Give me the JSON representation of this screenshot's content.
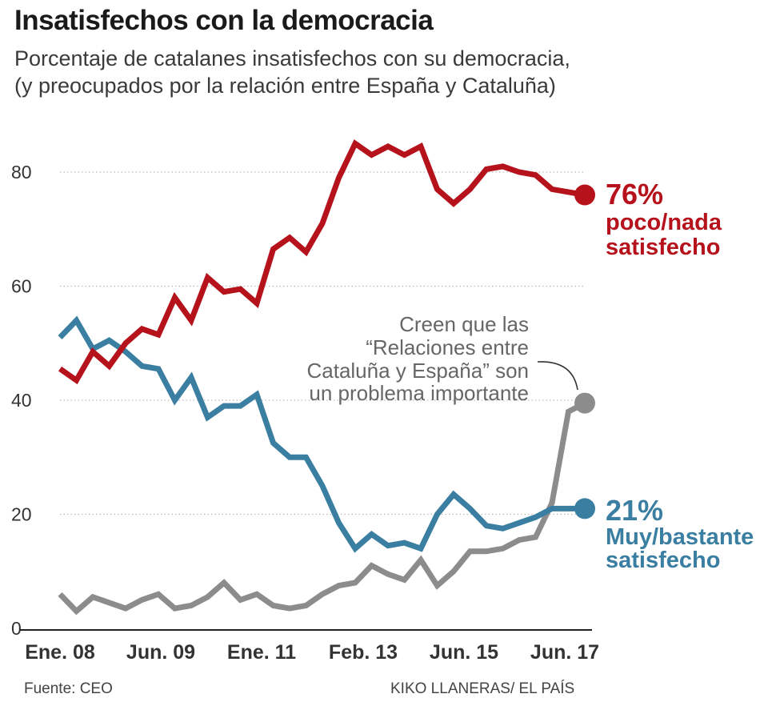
{
  "title": "Insatisfechos con la democracia",
  "subtitle": [
    "Porcentaje de catalanes insatisfechos con su democracia,",
    "(y preocupados por la relación entre España y Cataluña)"
  ],
  "source": "Fuente: CEO",
  "credit": "KIKO LLANERAS/ EL PAÍS",
  "colors": {
    "red": "#b5121b",
    "blue": "#3a7ea1",
    "gray": "#8c8c8c",
    "grid": "#bbbbbb"
  },
  "chart_data": {
    "type": "line",
    "title": "Insatisfechos con la democracia",
    "xlabel": "",
    "ylabel": "",
    "ylim": [
      0,
      88
    ],
    "yticks": [
      "0",
      "20",
      "40",
      "60",
      "80"
    ],
    "xticks": [
      "Ene. 08",
      "Jun. 09",
      "Ene. 11",
      "Feb. 13",
      "Jun. 15",
      "Jun. 17"
    ],
    "grid": "horizontal-dotted",
    "series": [
      {
        "name": "poco/nada satisfecho",
        "color": "#b5121b",
        "values": [
          45.5,
          43.5,
          48.5,
          46,
          50,
          52.5,
          51.5,
          58,
          54,
          61.5,
          59,
          59.5,
          57,
          66.5,
          68.5,
          66,
          71,
          79,
          85,
          83,
          84.5,
          83,
          84.5,
          77,
          74.5,
          77,
          80.5,
          81,
          80,
          79.5,
          77,
          76.5,
          76
        ],
        "end_label": {
          "value": "76%",
          "lines": [
            "poco/nada",
            "satisfecho"
          ]
        }
      },
      {
        "name": "Muy/bastante satisfecho",
        "color": "#3a7ea1",
        "values": [
          51,
          54,
          49,
          50.5,
          48.5,
          46,
          45.5,
          40,
          44,
          37,
          39,
          39,
          41,
          32.5,
          30,
          30,
          25,
          18.5,
          14,
          16.5,
          14.5,
          15,
          14,
          20,
          23.5,
          21,
          18,
          17.5,
          18.5,
          19.5,
          21,
          21,
          21
        ],
        "end_label": {
          "value": "21%",
          "lines": [
            "Muy/bastante",
            "satisfecho"
          ]
        }
      },
      {
        "name": "Relaciones entre Cataluña y España un problema importante",
        "color": "#8c8c8c",
        "values": [
          6,
          3,
          5.5,
          4.5,
          3.5,
          5,
          6,
          3.5,
          4,
          5.5,
          8,
          5,
          6,
          4,
          3.5,
          4,
          6,
          7.5,
          8,
          11,
          9.5,
          8.5,
          12,
          7.5,
          10,
          13.5,
          13.5,
          14,
          15.5,
          16,
          22,
          38,
          39.5
        ],
        "annotation": [
          "Creen que las",
          "“Relaciones entre",
          "Cataluña y España” son",
          "un problema importante"
        ]
      }
    ]
  }
}
